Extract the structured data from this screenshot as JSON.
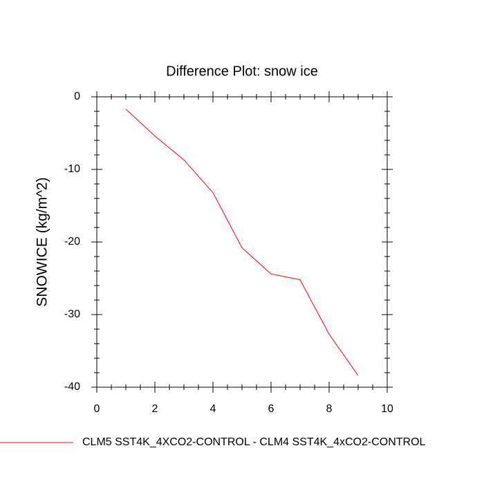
{
  "chart_data": {
    "type": "line",
    "title": "Difference Plot: snow ice",
    "ylabel": "SNOWICE  (kg/m^2)",
    "x": [
      1,
      2,
      3,
      4,
      5,
      6,
      7,
      8,
      9
    ],
    "series": [
      {
        "name": "CLM5 SST4K_4XCO2-CONTROL - CLM4 SST4K_4xCO2-CONTROL",
        "color": "#ff0000",
        "values": [
          -1.7,
          -5.4,
          -8.7,
          -13.2,
          -20.8,
          -24.4,
          -25.2,
          -32.7,
          -38.4
        ]
      }
    ],
    "xlim": [
      0,
      10
    ],
    "xticks": [
      0,
      2,
      4,
      6,
      8,
      10
    ],
    "ylim": [
      -40,
      0
    ],
    "yticks": [
      0,
      -10,
      -20,
      -30,
      -40
    ],
    "grid": false
  }
}
